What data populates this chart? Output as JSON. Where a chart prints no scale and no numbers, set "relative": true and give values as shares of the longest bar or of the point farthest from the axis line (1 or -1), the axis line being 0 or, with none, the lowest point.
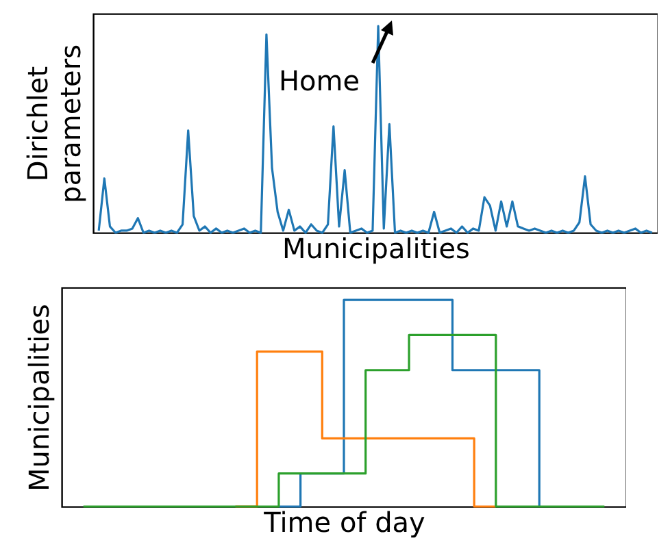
{
  "chart_data": [
    {
      "type": "line",
      "relative": true,
      "xlabel": "Municipalities",
      "ylabel": "Dirichlet parameters",
      "annotations": [
        "Home"
      ],
      "grid": false,
      "legend": false,
      "marker": "none",
      "categories": [
        null,
        null,
        null,
        null,
        null,
        null,
        null,
        null,
        null,
        null,
        null,
        null,
        null,
        null,
        null,
        null,
        null,
        null,
        null,
        null,
        null,
        null,
        null,
        null,
        null,
        null,
        null,
        null,
        null,
        null,
        null,
        null,
        null,
        null,
        null,
        null,
        null,
        null,
        null,
        null,
        null,
        null,
        null,
        null,
        null,
        null,
        null,
        null,
        null,
        null,
        null,
        null,
        null,
        null,
        null,
        null,
        null,
        null,
        null,
        null,
        null,
        null,
        null,
        null,
        null,
        null,
        null,
        null,
        null,
        null,
        null,
        null,
        null,
        null,
        null,
        null,
        null,
        null,
        null,
        null,
        null,
        null,
        null,
        null,
        null,
        null,
        null,
        null,
        null,
        null,
        null,
        null,
        null,
        null,
        null,
        null,
        null,
        null,
        null,
        null
      ],
      "series": [
        {
          "color": "#1f77b4",
          "values": [
            0.02,
            0.27,
            0.04,
            0.01,
            0.02,
            0.02,
            0.03,
            0.08,
            0.01,
            0.02,
            0.01,
            0.02,
            0.01,
            0.02,
            0.01,
            0.05,
            0.5,
            0.09,
            0.02,
            0.04,
            0.01,
            0.03,
            0.01,
            0.02,
            0.01,
            0.02,
            0.03,
            0.01,
            0.02,
            0.01,
            0.96,
            0.32,
            0.11,
            0.02,
            0.12,
            0.02,
            0.04,
            0.01,
            0.05,
            0.02,
            0.01,
            0.05,
            0.52,
            0.04,
            0.31,
            0.01,
            0.02,
            0.03,
            0.01,
            0.02,
            1,
            0.03,
            0.53,
            0.01,
            0.02,
            0.01,
            0.02,
            0.01,
            0.02,
            0.01,
            0.11,
            0.01,
            0.02,
            0.03,
            0.01,
            0.04,
            0.01,
            0.03,
            0.02,
            0.18,
            0.14,
            0.02,
            0.16,
            0.04,
            0.16,
            0.04,
            0.03,
            0.02,
            0.03,
            0.02,
            0.01,
            0.02,
            0.01,
            0.02,
            0.01,
            0.02,
            0.06,
            0.28,
            0.05,
            0.02,
            0.01,
            0.02,
            0.01,
            0.02,
            0.01,
            0.02,
            0.03,
            0.01,
            0.02,
            0.01
          ]
        }
      ]
    },
    {
      "type": "step",
      "relative": true,
      "xlabel": "Time of day",
      "ylabel": "Municipalities",
      "grid": false,
      "legend": false,
      "marker": "none",
      "categories": [
        null,
        null,
        null,
        null,
        null,
        null,
        null,
        null,
        null,
        null,
        null,
        null,
        null,
        null,
        null,
        null,
        null,
        null,
        null,
        null,
        null,
        null,
        null,
        null,
        null
      ],
      "series": [
        {
          "color": "#1f77b4",
          "values": [
            null,
            null,
            null,
            null,
            null,
            null,
            null,
            null,
            null,
            0,
            0.16,
            0.16,
            1,
            1,
            1,
            1,
            1,
            0.66,
            0.66,
            0.66,
            0.66,
            0,
            null,
            null,
            null
          ]
        },
        {
          "color": "#ff7f0e",
          "values": [
            null,
            null,
            null,
            null,
            null,
            null,
            null,
            0,
            0.75,
            0.75,
            0.75,
            0.33,
            0.33,
            0.33,
            0.33,
            0.33,
            0.33,
            0.33,
            0,
            0,
            null,
            null,
            null,
            null,
            null
          ]
        },
        {
          "color": "#2ca02c",
          "values": [
            0,
            0,
            0,
            0,
            0,
            0,
            0,
            0,
            0,
            0.16,
            0.16,
            0.16,
            0.16,
            0.66,
            0.66,
            0.83,
            0.83,
            0.83,
            0.83,
            0,
            0,
            0,
            0,
            0,
            0
          ]
        }
      ]
    }
  ]
}
